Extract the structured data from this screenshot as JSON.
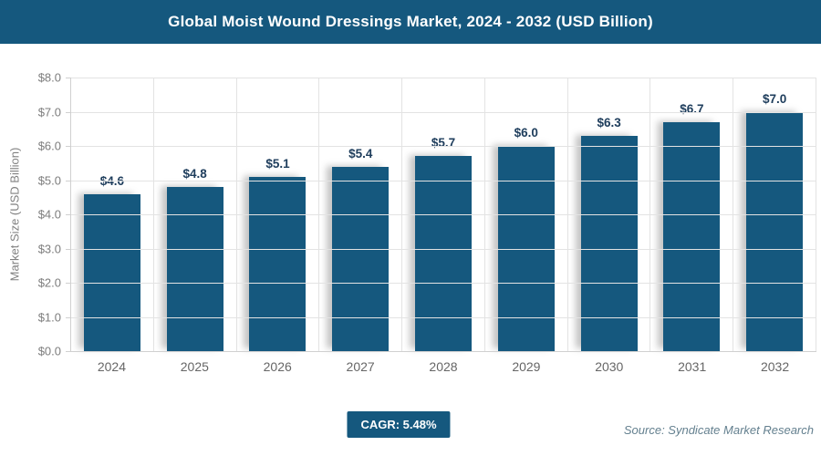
{
  "header": {
    "title": "Global Moist Wound Dressings Market, 2024 - 2032 (USD Billion)"
  },
  "chart_data": {
    "type": "bar",
    "title": "Global Moist Wound Dressings Market, 2024 - 2032 (USD Billion)",
    "categories": [
      "2024",
      "2025",
      "2026",
      "2027",
      "2028",
      "2029",
      "2030",
      "2031",
      "2032"
    ],
    "values": [
      4.6,
      4.8,
      5.1,
      5.4,
      5.7,
      6.0,
      6.3,
      6.7,
      7.0
    ],
    "bar_labels": [
      "$4.6",
      "$4.8",
      "$5.1",
      "$5.4",
      "$5.7",
      "$6.0",
      "$6.3",
      "$6.7",
      "$7.0"
    ],
    "xlabel": "",
    "ylabel": "Market Size (USD Billion)",
    "ylim": [
      0,
      8
    ],
    "ytick_step": 1,
    "ytick_labels": [
      "$0.0",
      "$1.0",
      "$2.0",
      "$3.0",
      "$4.0",
      "$5.0",
      "$6.0",
      "$7.0",
      "$8.0"
    ],
    "grid": true,
    "legend": "none"
  },
  "footer": {
    "cagr_label": "CAGR: 5.48%",
    "source": "Source: Syndicate Market Research"
  },
  "colors": {
    "accent": "#15587e",
    "bar": "#15587e",
    "value_label": "#1e3d5c",
    "axis_text": "#7d7d7d",
    "grid": "#e3e3e3",
    "source_text": "#64808f"
  }
}
